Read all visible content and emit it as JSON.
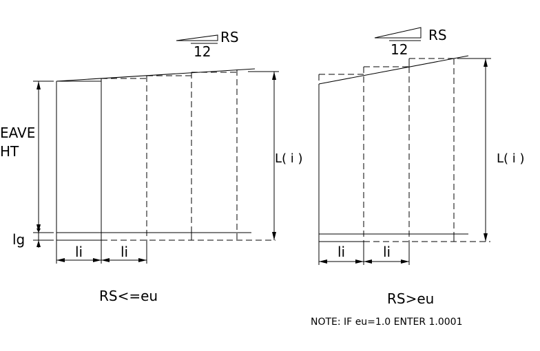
{
  "left_panel": {
    "slope_rise_label": "RS",
    "slope_run_label": "12",
    "eave_label_line1": "EAVE",
    "eave_label_line2": "HT",
    "lg_label": "lg",
    "length_label": "L( i )",
    "spacing_label_1": "li",
    "spacing_label_2": "li",
    "condition_label": "RS<=eu"
  },
  "right_panel": {
    "slope_rise_label": "RS",
    "slope_run_label": "12",
    "length_label": "L( i )",
    "spacing_label_1": "li",
    "spacing_label_2": "li",
    "condition_label": "RS>eu"
  },
  "note": "NOTE:  IF eu=1.0 ENTER 1.0001"
}
